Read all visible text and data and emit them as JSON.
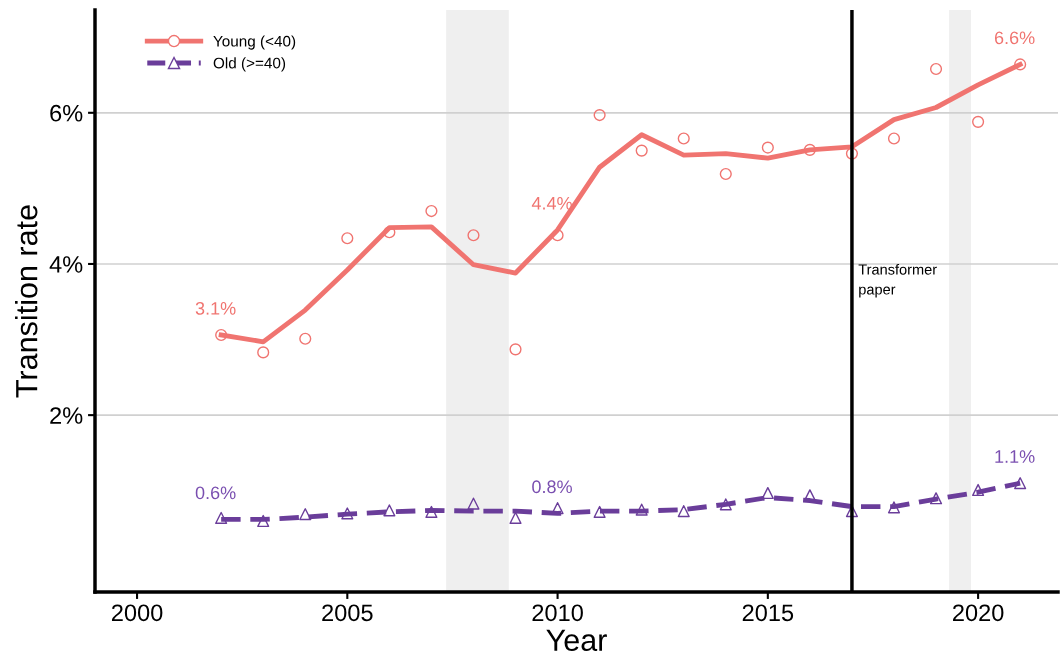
{
  "chart_data": {
    "type": "line",
    "xlabel": "Year",
    "ylabel": "Transition rate",
    "xlim": [
      1999,
      2021.9
    ],
    "ylim": [
      -0.34,
      7.36
    ],
    "xticks": [
      2000,
      2005,
      2010,
      2015,
      2020
    ],
    "yticks": [
      {
        "value": 2,
        "label": "2%"
      },
      {
        "value": 4,
        "label": "4%"
      },
      {
        "value": 6,
        "label": "6%"
      }
    ],
    "grid": "y",
    "legend": "top left",
    "series": [
      {
        "name": "Young (<40)",
        "color": "#f07470",
        "line_style": "solid",
        "x": [
          2002,
          2003,
          2004,
          2005,
          2006,
          2007,
          2008,
          2009,
          2010,
          2011,
          2012,
          2013,
          2014,
          2015,
          2016,
          2017,
          2018,
          2019,
          2020,
          2021
        ],
        "values": [
          3.06,
          2.97,
          3.39,
          3.92,
          4.48,
          4.49,
          3.99,
          3.88,
          4.45,
          5.28,
          5.71,
          5.44,
          5.46,
          5.4,
          5.51,
          5.55,
          5.91,
          6.07,
          6.37,
          6.64
        ]
      },
      {
        "type": "scatter",
        "color": "#f07470",
        "marker": "circle",
        "x": [
          2002,
          2003,
          2004,
          2005,
          2006,
          2007,
          2008,
          2009,
          2010,
          2011,
          2012,
          2013,
          2014,
          2015,
          2016,
          2017,
          2018,
          2019,
          2020,
          2021
        ],
        "values": [
          3.06,
          2.83,
          3.01,
          4.34,
          4.42,
          4.7,
          4.38,
          2.87,
          4.38,
          5.97,
          5.5,
          5.66,
          5.19,
          5.54,
          5.51,
          5.46,
          5.66,
          6.58,
          5.88,
          6.64
        ]
      },
      {
        "name": "Old (>=40)",
        "color": "#6a3d9a",
        "line_style": "dashed",
        "x": [
          2002,
          2003,
          2004,
          2005,
          2006,
          2007,
          2008,
          2009,
          2010,
          2011,
          2012,
          2013,
          2014,
          2015,
          2016,
          2017,
          2018,
          2019,
          2020,
          2021
        ],
        "values": [
          0.62,
          0.62,
          0.65,
          0.69,
          0.72,
          0.74,
          0.73,
          0.73,
          0.7,
          0.73,
          0.73,
          0.75,
          0.82,
          0.91,
          0.87,
          0.79,
          0.79,
          0.89,
          0.98,
          1.1
        ]
      },
      {
        "type": "scatter",
        "color": "#6a3d9a",
        "marker": "triangle",
        "x": [
          2002,
          2003,
          2004,
          2005,
          2006,
          2007,
          2008,
          2009,
          2010,
          2011,
          2012,
          2013,
          2014,
          2015,
          2016,
          2017,
          2018,
          2019,
          2020,
          2021
        ],
        "values": [
          0.64,
          0.6,
          0.69,
          0.7,
          0.74,
          0.72,
          0.83,
          0.64,
          0.77,
          0.72,
          0.75,
          0.73,
          0.82,
          0.97,
          0.94,
          0.73,
          0.78,
          0.9,
          1.01,
          1.1
        ]
      }
    ],
    "bands": [
      {
        "axis": "x",
        "from": 2007.35,
        "to": 2008.84,
        "color": "#efefef"
      },
      {
        "axis": "x",
        "from": 2019.31,
        "to": 2019.83,
        "color": "#efefef"
      }
    ],
    "ref_lines": [
      {
        "axis": "x",
        "value": 2017,
        "label": "Transformer\npaper",
        "color": "#000000"
      }
    ],
    "annotations": [
      {
        "text": "3.1%",
        "x": 2002,
        "y": 3.06
      },
      {
        "text": "4.4%",
        "x": 2010,
        "y": 4.45
      },
      {
        "text": "6.6%",
        "x": 2021,
        "y": 6.64
      },
      {
        "text": "0.6%",
        "x": 2002,
        "y": 0.62
      },
      {
        "text": "0.8%",
        "x": 2010,
        "y": 0.7
      },
      {
        "text": "1.1%",
        "x": 2021,
        "y": 1.1
      }
    ]
  }
}
